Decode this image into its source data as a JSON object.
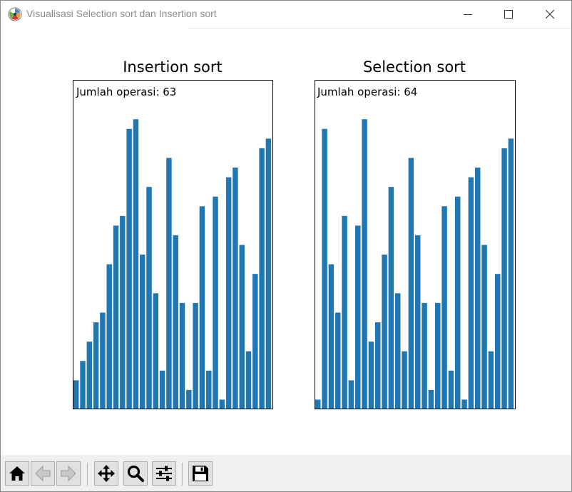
{
  "window": {
    "title": "Visualisasi Selection sort dan Insertion sort",
    "controls": [
      "minimize-icon",
      "maximize-icon",
      "close-icon"
    ]
  },
  "colors": {
    "bar": "#1f77b4",
    "axes": "#000000",
    "toolbar_bg": "#f0f0f0",
    "title_text": "#8c8c8c"
  },
  "chart_data": [
    {
      "type": "bar",
      "title": "Insertion sort",
      "annotation": "Jumlah operasi: 63",
      "grid": false,
      "axis_ticks": false,
      "values": [
        3,
        5,
        7,
        9,
        10,
        15,
        19,
        20,
        29,
        30,
        16,
        23,
        12,
        4,
        26,
        18,
        11,
        2,
        11,
        21,
        4,
        22,
        1,
        24,
        25,
        17,
        6,
        14,
        27,
        28
      ],
      "ylim": [
        0,
        34
      ]
    },
    {
      "type": "bar",
      "title": "Selection sort",
      "annotation": "Jumlah operasi: 64",
      "grid": false,
      "axis_ticks": false,
      "values": [
        1,
        29,
        15,
        10,
        20,
        3,
        19,
        30,
        7,
        9,
        16,
        23,
        12,
        6,
        26,
        18,
        11,
        2,
        11,
        21,
        4,
        22,
        1,
        24,
        25,
        17,
        6,
        14,
        27,
        28
      ],
      "ylim": [
        0,
        34
      ]
    }
  ],
  "toolbar": {
    "buttons": [
      {
        "name": "home-button",
        "icon": "home-icon"
      },
      {
        "name": "back-button",
        "icon": "back-arrow-icon"
      },
      {
        "name": "forward-button",
        "icon": "forward-arrow-icon"
      },
      {
        "name": "pan-button",
        "icon": "move-icon"
      },
      {
        "name": "zoom-button",
        "icon": "magnifier-icon"
      },
      {
        "name": "configure-subplots-button",
        "icon": "sliders-icon"
      },
      {
        "name": "save-button",
        "icon": "floppy-disk-icon"
      }
    ]
  }
}
